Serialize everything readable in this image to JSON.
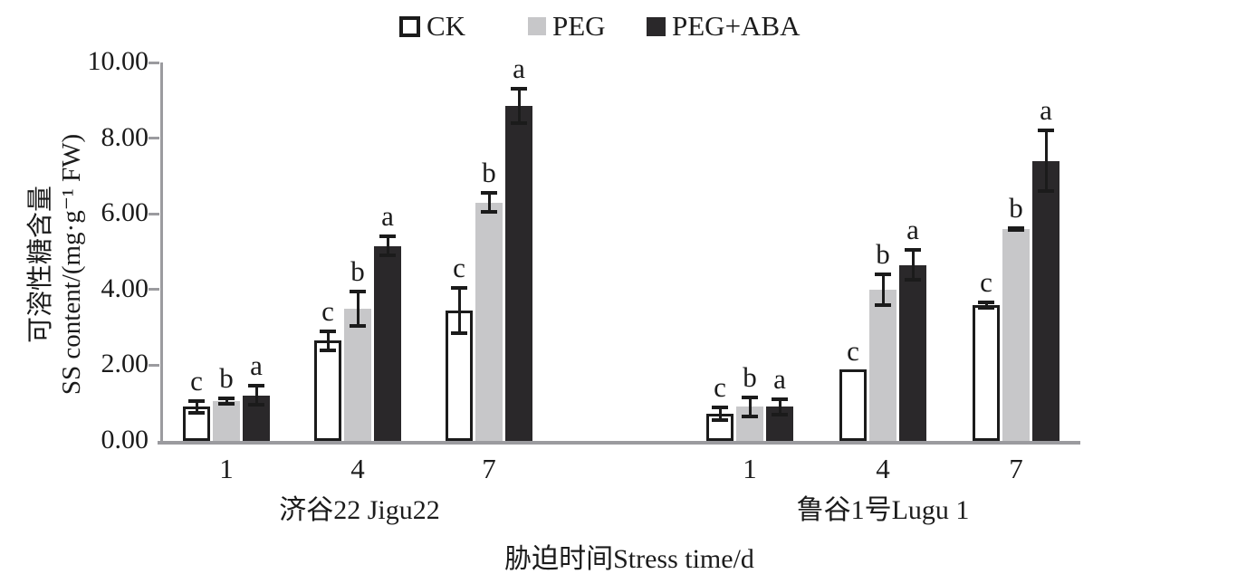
{
  "chart_data": {
    "type": "bar",
    "title": "",
    "xlabel": "胁迫时间Stress time/d",
    "ylabel": "可溶性糖含量 SS content/(mg·g⁻¹ FW)",
    "ylabel_line1": "可溶性糖含量",
    "ylabel_line2": "SS content/(mg·g⁻¹ FW)",
    "ylim": [
      0,
      10
    ],
    "grid": false,
    "legend_position": "top",
    "yticks": [
      {
        "v": 0,
        "label": "0.00"
      },
      {
        "v": 2,
        "label": "2.00"
      },
      {
        "v": 4,
        "label": "4.00"
      },
      {
        "v": 6,
        "label": "6.00"
      },
      {
        "v": 8,
        "label": "8.00"
      },
      {
        "v": 10,
        "label": "10.00"
      }
    ],
    "series": [
      {
        "name": "CK",
        "fill": "#ffffff",
        "border": "#1b1b1b",
        "css": "ck"
      },
      {
        "name": "PEG",
        "fill": "#c7c7c9",
        "border": "#c7c7c9",
        "css": "peg"
      },
      {
        "name": "PEG+ABA",
        "fill": "#2a282a",
        "border": "#2a282a",
        "css": "aba"
      }
    ],
    "categories": [
      "1",
      "4",
      "7"
    ],
    "cultivars": [
      {
        "label": "济谷22 Jigu22",
        "groups": [
          {
            "time": "1",
            "bars": [
              {
                "series": "CK",
                "value": 0.9,
                "error": 0.2,
                "letter": "c"
              },
              {
                "series": "PEG",
                "value": 1.05,
                "error": 0.12,
                "letter": "b"
              },
              {
                "series": "PEG+ABA",
                "value": 1.2,
                "error": 0.3,
                "letter": "a"
              }
            ]
          },
          {
            "time": "4",
            "bars": [
              {
                "series": "CK",
                "value": 2.65,
                "error": 0.3,
                "letter": "c"
              },
              {
                "series": "PEG",
                "value": 3.5,
                "error": 0.5,
                "letter": "b"
              },
              {
                "series": "PEG+ABA",
                "value": 5.15,
                "error": 0.3,
                "letter": "a"
              }
            ]
          },
          {
            "time": "7",
            "bars": [
              {
                "series": "CK",
                "value": 3.45,
                "error": 0.65,
                "letter": "c"
              },
              {
                "series": "PEG",
                "value": 6.3,
                "error": 0.3,
                "letter": "b"
              },
              {
                "series": "PEG+ABA",
                "value": 8.85,
                "error": 0.5,
                "letter": "a"
              }
            ]
          }
        ]
      },
      {
        "label": "鲁谷1号Lugu 1",
        "groups": [
          {
            "time": "1",
            "bars": [
              {
                "series": "CK",
                "value": 0.72,
                "error": 0.22,
                "letter": "c"
              },
              {
                "series": "PEG",
                "value": 0.9,
                "error": 0.3,
                "letter": "b"
              },
              {
                "series": "PEG+ABA",
                "value": 0.9,
                "error": 0.25,
                "letter": "a"
              }
            ]
          },
          {
            "time": "4",
            "bars": [
              {
                "series": "CK",
                "value": 1.88,
                "error": 0.0,
                "letter": "c"
              },
              {
                "series": "PEG",
                "value": 4.0,
                "error": 0.45,
                "letter": "b"
              },
              {
                "series": "PEG+ABA",
                "value": 4.65,
                "error": 0.45,
                "letter": "a"
              }
            ]
          },
          {
            "time": "7",
            "bars": [
              {
                "series": "CK",
                "value": 3.6,
                "error": 0.12,
                "letter": "c"
              },
              {
                "series": "PEG",
                "value": 5.6,
                "error": 0.07,
                "letter": "b"
              },
              {
                "series": "PEG+ABA",
                "value": 7.4,
                "error": 0.85,
                "letter": "a"
              }
            ]
          }
        ]
      }
    ]
  }
}
